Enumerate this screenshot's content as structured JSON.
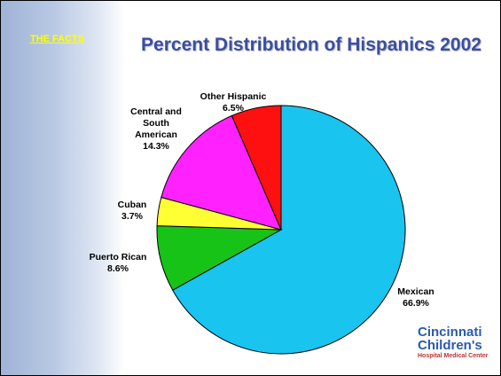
{
  "header": {
    "link": "THE FACTS"
  },
  "chart_data": {
    "type": "pie",
    "title": "Percent Distribution of Hispanics 2002",
    "categories": [
      "Mexican",
      "Puerto Rican",
      "Cuban",
      "Central and South American",
      "Other Hispanic"
    ],
    "values": [
      66.9,
      8.6,
      3.7,
      14.3,
      6.5
    ],
    "value_labels": [
      "66.9%",
      "8.6%",
      "3.7%",
      "14.3%",
      "6.5%"
    ],
    "colors": [
      "#19c4ef",
      "#17c317",
      "#ffff33",
      "#ff22ff",
      "#ff1010"
    ]
  },
  "logo": {
    "name1": "Cincinnati",
    "name2": "Children's",
    "subtitle": "Hospital Medical Center"
  }
}
